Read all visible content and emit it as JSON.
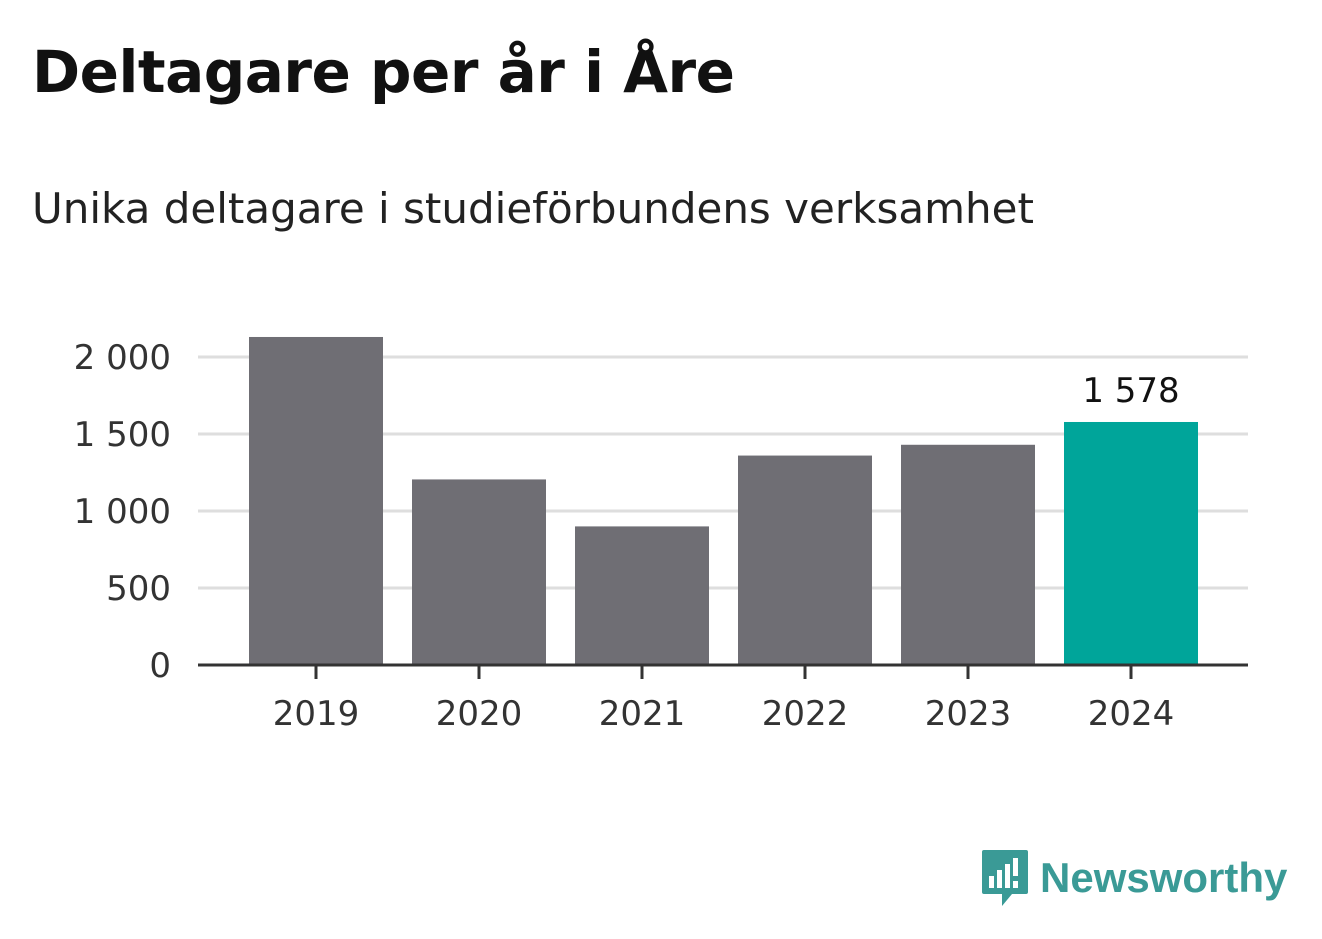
{
  "title": "Deltagare per år i Åre",
  "subtitle": "Unika deltagare i studieförbundens verksamhet",
  "brand": {
    "name": "Newsworthy",
    "icon": "newsworthy-logo-icon",
    "color": "#3a9a96"
  },
  "colors": {
    "bar": "#6f6e74",
    "highlight": "#00a59a",
    "grid": "#dedede",
    "axis": "#333333"
  },
  "chart_data": {
    "type": "bar",
    "title": "Deltagare per år i Åre",
    "subtitle": "Unika deltagare i studieförbundens verksamhet",
    "xlabel": "",
    "ylabel": "",
    "categories": [
      "2019",
      "2020",
      "2021",
      "2022",
      "2023",
      "2024"
    ],
    "values": [
      2130,
      1205,
      900,
      1360,
      1430,
      1578
    ],
    "highlight_index": 5,
    "data_labels": [
      {
        "index": 5,
        "text": "1 578"
      }
    ],
    "ylim": [
      0,
      2200
    ],
    "yticks": [
      {
        "value": 0,
        "label": "0"
      },
      {
        "value": 500,
        "label": "500"
      },
      {
        "value": 1000,
        "label": "1 000"
      },
      {
        "value": 1500,
        "label": "1 500"
      },
      {
        "value": 2000,
        "label": "2 000"
      }
    ],
    "grid": true,
    "legend": "none"
  }
}
